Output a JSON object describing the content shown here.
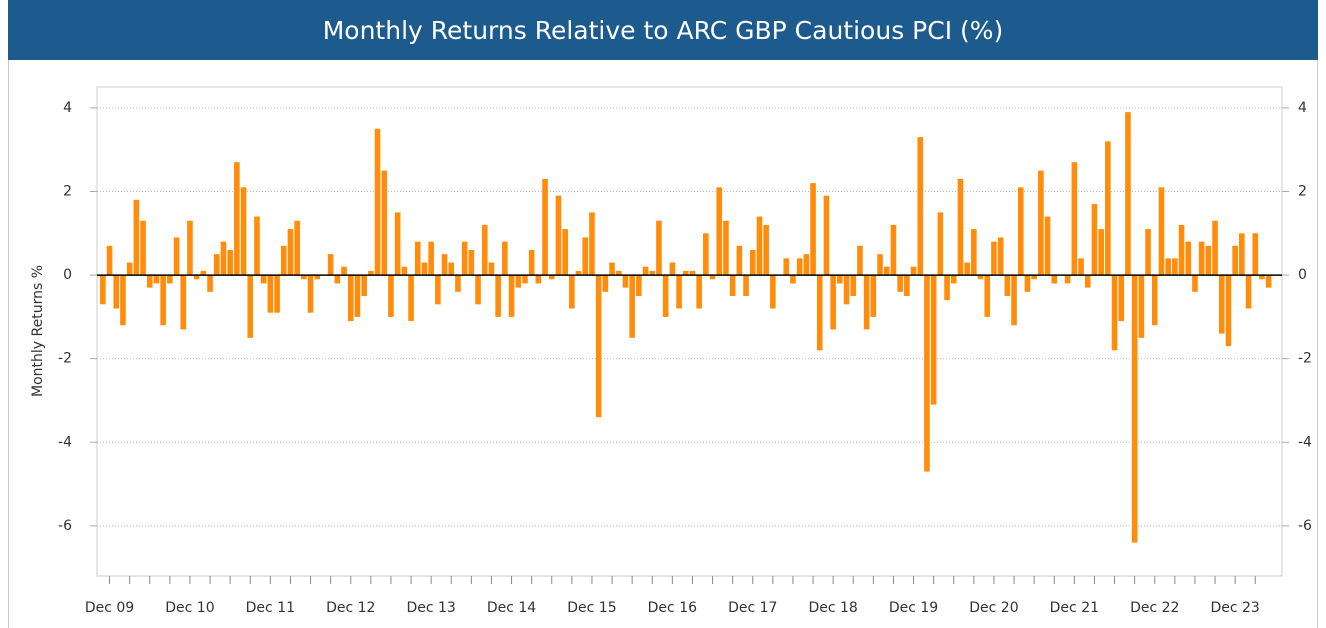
{
  "chart_data": {
    "type": "bar",
    "title": "Monthly Returns Relative to ARC GBP Cautious PCI (%)",
    "y_label": "Monthly Returns %",
    "color": "#ff8c0a",
    "grid": true,
    "ylim": [
      -7.2,
      4.5
    ],
    "yticks": [
      -6,
      -4,
      -2,
      0,
      2,
      4
    ],
    "categories": [
      null,
      "Dec 09",
      null,
      null,
      null,
      null,
      null,
      null,
      null,
      null,
      null,
      null,
      null,
      "Dec 10",
      null,
      null,
      null,
      null,
      null,
      null,
      null,
      null,
      null,
      null,
      null,
      "Dec 11",
      null,
      null,
      null,
      null,
      null,
      null,
      null,
      null,
      null,
      null,
      null,
      "Dec 12",
      null,
      null,
      null,
      null,
      null,
      null,
      null,
      null,
      null,
      null,
      null,
      "Dec 13",
      null,
      null,
      null,
      null,
      null,
      null,
      null,
      null,
      null,
      null,
      null,
      "Dec 14",
      null,
      null,
      null,
      null,
      null,
      null,
      null,
      null,
      null,
      null,
      null,
      "Dec 15",
      null,
      null,
      null,
      null,
      null,
      null,
      null,
      null,
      null,
      null,
      null,
      "Dec 16",
      null,
      null,
      null,
      null,
      null,
      null,
      null,
      null,
      null,
      null,
      null,
      "Dec 17",
      null,
      null,
      null,
      null,
      null,
      null,
      null,
      null,
      null,
      null,
      null,
      "Dec 18",
      null,
      null,
      null,
      null,
      null,
      null,
      null,
      null,
      null,
      null,
      null,
      "Dec 19",
      null,
      null,
      null,
      null,
      null,
      null,
      null,
      null,
      null,
      null,
      null,
      "Dec 20",
      null,
      null,
      null,
      null,
      null,
      null,
      null,
      null,
      null,
      null,
      null,
      "Dec 21",
      null,
      null,
      null,
      null,
      null,
      null,
      null,
      null,
      null,
      null,
      null,
      "Dec 22",
      null,
      null,
      null,
      null,
      null,
      null,
      null,
      null,
      null,
      null,
      null,
      "Dec 23",
      null,
      null,
      null,
      null,
      null
    ],
    "values": [
      -0.7,
      0.7,
      -0.8,
      -1.2,
      0.3,
      1.8,
      1.3,
      -0.3,
      -0.2,
      -1.2,
      -0.2,
      0.9,
      -1.3,
      1.3,
      -0.1,
      0.1,
      -0.4,
      0.5,
      0.8,
      0.6,
      2.7,
      2.1,
      -1.5,
      1.4,
      -0.2,
      -0.9,
      -0.9,
      0.7,
      1.1,
      1.3,
      -0.1,
      -0.9,
      -0.1,
      0.0,
      0.5,
      -0.2,
      0.2,
      -1.1,
      -1.0,
      -0.5,
      0.1,
      3.5,
      2.5,
      -1.0,
      1.5,
      0.2,
      -1.1,
      0.8,
      0.3,
      0.8,
      -0.7,
      0.5,
      0.3,
      -0.4,
      0.8,
      0.6,
      -0.7,
      1.2,
      0.3,
      -1.0,
      0.8,
      -1.0,
      -0.3,
      -0.2,
      0.6,
      -0.2,
      2.3,
      -0.1,
      1.9,
      1.1,
      -0.8,
      0.1,
      0.9,
      1.5,
      -3.4,
      -0.4,
      0.3,
      0.1,
      -0.3,
      -1.5,
      -0.5,
      0.2,
      0.1,
      1.3,
      -1.0,
      0.3,
      -0.8,
      0.1,
      0.1,
      -0.8,
      1.0,
      -0.1,
      2.1,
      1.3,
      -0.5,
      0.7,
      -0.5,
      0.6,
      1.4,
      1.2,
      -0.8,
      0.0,
      0.4,
      -0.2,
      0.4,
      0.5,
      2.2,
      -1.8,
      1.9,
      -1.3,
      -0.2,
      -0.7,
      -0.5,
      0.7,
      -1.3,
      -1.0,
      0.5,
      0.2,
      1.2,
      -0.4,
      -0.5,
      0.2,
      3.3,
      -4.7,
      -3.1,
      1.5,
      -0.6,
      -0.2,
      2.3,
      0.3,
      1.1,
      -0.1,
      -1.0,
      0.8,
      0.9,
      -0.5,
      -1.2,
      2.1,
      -0.4,
      -0.1,
      2.5,
      1.4,
      -0.2,
      0.0,
      -0.2,
      2.7,
      0.4,
      -0.3,
      1.7,
      1.1,
      3.2,
      -1.8,
      -1.1,
      3.9,
      -6.4,
      -1.5,
      1.1,
      -1.2,
      2.1,
      0.4,
      0.4,
      1.2,
      0.8,
      -0.4,
      0.8,
      0.7,
      1.3,
      -1.4,
      -1.7,
      0.7,
      1.0,
      -0.8,
      1.0,
      -0.1,
      -0.3
    ]
  }
}
